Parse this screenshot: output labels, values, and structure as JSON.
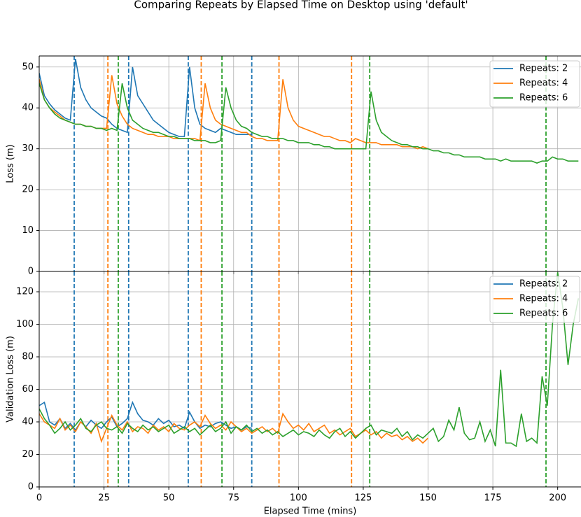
{
  "chart_data": [
    {
      "type": "line",
      "title": "Comparing Repeats by Elapsed Time on Desktop using 'default'",
      "ylabel": "Loss (m)",
      "xlim": [
        0,
        209
      ],
      "ylim": [
        0,
        52.7
      ],
      "xticks": [
        0,
        25,
        50,
        75,
        100,
        125,
        150,
        175,
        200
      ],
      "yticks": [
        0,
        10,
        20,
        30,
        40,
        50
      ],
      "grid": true,
      "legend": "upper right",
      "series": [
        {
          "name": "Repeats: 2",
          "color": "#1f77b4",
          "x": [
            0,
            2,
            4,
            6,
            8,
            10,
            12,
            14,
            16,
            18,
            20,
            22,
            24,
            26,
            28,
            30,
            32,
            34,
            36,
            38,
            40,
            42,
            44,
            46,
            48,
            50,
            52,
            54,
            56,
            58,
            60,
            62,
            64,
            66,
            68,
            70,
            72,
            74,
            76,
            78,
            80,
            82
          ],
          "values": [
            48.5,
            43,
            41,
            39.5,
            38.5,
            37.5,
            37,
            52,
            45,
            42,
            40,
            39,
            38,
            37.5,
            36,
            35,
            34.5,
            34,
            50,
            43,
            41,
            39,
            37,
            36,
            35,
            34,
            33.5,
            33,
            33,
            50,
            40,
            36,
            35,
            34.5,
            34,
            35,
            34.5,
            34,
            33.5,
            33.5,
            33.5,
            33.5
          ]
        },
        {
          "name": "Repeats: 4",
          "color": "#ff7f0e",
          "x": [
            0,
            2,
            4,
            6,
            8,
            10,
            12,
            14,
            16,
            18,
            20,
            22,
            24,
            26,
            28,
            30,
            32,
            34,
            36,
            38,
            40,
            42,
            44,
            46,
            48,
            50,
            52,
            54,
            56,
            58,
            60,
            62,
            64,
            66,
            68,
            70,
            72,
            74,
            76,
            78,
            80,
            82,
            84,
            86,
            88,
            90,
            92,
            94,
            96,
            98,
            100,
            102,
            104,
            106,
            108,
            110,
            112,
            114,
            116,
            118,
            120,
            122,
            124,
            126,
            128,
            130,
            132,
            134,
            136,
            138,
            140,
            142,
            144,
            146,
            148,
            150
          ],
          "values": [
            47,
            42,
            40,
            39,
            38,
            37,
            36.5,
            36,
            36,
            35.5,
            35.5,
            35,
            35,
            35,
            48,
            41,
            38,
            36,
            35,
            34.5,
            34,
            33.5,
            33.5,
            33,
            33,
            33,
            32.5,
            32.5,
            32.5,
            32.5,
            32.5,
            32,
            46,
            40,
            37,
            36,
            35.5,
            35,
            34.5,
            34,
            34,
            33,
            32.5,
            32.5,
            32,
            32,
            32,
            47,
            40,
            37,
            35.5,
            35,
            34.5,
            34,
            33.5,
            33,
            33,
            32.5,
            32,
            32,
            31.5,
            32.5,
            32,
            31.5,
            31.5,
            31.5,
            31,
            31,
            31,
            31,
            30.5,
            30.5,
            30.5,
            30,
            30.5,
            30
          ]
        },
        {
          "name": "Repeats: 6",
          "color": "#2ca02c",
          "x": [
            0,
            2,
            4,
            6,
            8,
            10,
            12,
            14,
            16,
            18,
            20,
            22,
            24,
            26,
            28,
            30,
            32,
            34,
            36,
            38,
            40,
            42,
            44,
            46,
            48,
            50,
            52,
            54,
            56,
            58,
            60,
            62,
            64,
            66,
            68,
            70,
            72,
            74,
            76,
            78,
            80,
            82,
            84,
            86,
            88,
            90,
            92,
            94,
            96,
            98,
            100,
            102,
            104,
            106,
            108,
            110,
            112,
            114,
            116,
            118,
            120,
            122,
            124,
            126,
            128,
            130,
            132,
            134,
            136,
            138,
            140,
            142,
            144,
            146,
            148,
            150,
            152,
            154,
            156,
            158,
            160,
            162,
            164,
            166,
            168,
            170,
            172,
            174,
            176,
            178,
            180,
            182,
            184,
            186,
            188,
            190,
            192,
            194,
            196,
            198,
            200,
            202,
            204,
            206,
            208
          ],
          "values": [
            46,
            42,
            40,
            38.5,
            37.5,
            37,
            36.5,
            36,
            36,
            35.5,
            35.5,
            35,
            35,
            34.5,
            35,
            34.5,
            46,
            40,
            37,
            36,
            35,
            34.5,
            34,
            34,
            33.5,
            33,
            33,
            32.5,
            32.5,
            32.5,
            32,
            32,
            32,
            31.5,
            31.5,
            32,
            45,
            40,
            37,
            35.5,
            35,
            34,
            33.5,
            33,
            33,
            32.5,
            32.5,
            32.5,
            32,
            32,
            31.5,
            31.5,
            31.5,
            31,
            31,
            30.5,
            30.5,
            30,
            30,
            30,
            30,
            30,
            30,
            30,
            44,
            37,
            34,
            33,
            32,
            31.5,
            31,
            31,
            30.5,
            30.5,
            30,
            30,
            29.5,
            29.5,
            29,
            29,
            28.5,
            28.5,
            28,
            28,
            28,
            28,
            27.5,
            27.5,
            27.5,
            27,
            27.5,
            27,
            27,
            27,
            27,
            27,
            26.5,
            27,
            27,
            28,
            27.5,
            27.5,
            27,
            27,
            27
          ]
        }
      ],
      "vlines": [
        {
          "x": 13.5,
          "color": "#1f77b4"
        },
        {
          "x": 34.5,
          "color": "#1f77b4"
        },
        {
          "x": 57.5,
          "color": "#1f77b4"
        },
        {
          "x": 82,
          "color": "#1f77b4"
        },
        {
          "x": 26.5,
          "color": "#ff7f0e"
        },
        {
          "x": 62.5,
          "color": "#ff7f0e"
        },
        {
          "x": 92.5,
          "color": "#ff7f0e"
        },
        {
          "x": 120.5,
          "color": "#ff7f0e"
        },
        {
          "x": 30.5,
          "color": "#2ca02c"
        },
        {
          "x": 70.5,
          "color": "#2ca02c"
        },
        {
          "x": 127.5,
          "color": "#2ca02c"
        },
        {
          "x": 195.5,
          "color": "#2ca02c"
        }
      ]
    },
    {
      "type": "line",
      "ylabel": "Validation Loss (m)",
      "xlabel": "Elapsed Time (mins)",
      "xlim": [
        0,
        209
      ],
      "ylim": [
        0,
        132.5
      ],
      "xticks": [
        0,
        25,
        50,
        75,
        100,
        125,
        150,
        175,
        200
      ],
      "yticks": [
        0,
        20,
        40,
        60,
        80,
        100,
        120
      ],
      "grid": true,
      "legend": "upper right",
      "series": [
        {
          "name": "Repeats: 2",
          "color": "#1f77b4",
          "x": [
            0,
            2,
            4,
            6,
            8,
            10,
            12,
            14,
            16,
            18,
            20,
            22,
            24,
            26,
            28,
            30,
            32,
            34,
            36,
            38,
            40,
            42,
            44,
            46,
            48,
            50,
            52,
            54,
            56,
            58,
            60,
            62,
            64,
            66,
            68,
            70,
            72,
            74,
            76,
            78,
            80,
            82
          ],
          "values": [
            50,
            52,
            40,
            38,
            42,
            36,
            39,
            35,
            40,
            37,
            41,
            38,
            36,
            40,
            43,
            37,
            39,
            42,
            52,
            45,
            41,
            40,
            38,
            42,
            39,
            41,
            37,
            38,
            36,
            46,
            40,
            36,
            38,
            37,
            39,
            40,
            38,
            36,
            37,
            35,
            37,
            36
          ]
        },
        {
          "name": "Repeats: 4",
          "color": "#ff7f0e",
          "x": [
            0,
            2,
            4,
            6,
            8,
            10,
            12,
            14,
            16,
            18,
            20,
            22,
            24,
            26,
            28,
            30,
            32,
            34,
            36,
            38,
            40,
            42,
            44,
            46,
            48,
            50,
            52,
            54,
            56,
            58,
            60,
            62,
            64,
            66,
            68,
            70,
            72,
            74,
            76,
            78,
            80,
            82,
            84,
            86,
            88,
            90,
            92,
            94,
            96,
            98,
            100,
            102,
            104,
            106,
            108,
            110,
            112,
            114,
            116,
            118,
            120,
            122,
            124,
            126,
            128,
            130,
            132,
            134,
            136,
            138,
            140,
            142,
            144,
            146,
            148,
            150
          ],
          "values": [
            45,
            40,
            38,
            36,
            42,
            35,
            38,
            34,
            40,
            37,
            33,
            39,
            28,
            36,
            44,
            38,
            35,
            40,
            34,
            37,
            36,
            33,
            38,
            35,
            37,
            34,
            39,
            36,
            35,
            38,
            40,
            37,
            44,
            39,
            36,
            38,
            35,
            40,
            37,
            34,
            36,
            33,
            35,
            37,
            34,
            36,
            33,
            45,
            40,
            36,
            38,
            35,
            39,
            34,
            36,
            38,
            33,
            35,
            32,
            34,
            36,
            31,
            33,
            35,
            32,
            34,
            30,
            33,
            31,
            32,
            29,
            31,
            28,
            30,
            27,
            30
          ]
        },
        {
          "name": "Repeats: 6",
          "color": "#2ca02c",
          "x": [
            0,
            2,
            4,
            6,
            8,
            10,
            12,
            14,
            16,
            18,
            20,
            22,
            24,
            26,
            28,
            30,
            32,
            34,
            36,
            38,
            40,
            42,
            44,
            46,
            48,
            50,
            52,
            54,
            56,
            58,
            60,
            62,
            64,
            66,
            68,
            70,
            72,
            74,
            76,
            78,
            80,
            82,
            84,
            86,
            88,
            90,
            92,
            94,
            96,
            98,
            100,
            102,
            104,
            106,
            108,
            110,
            112,
            114,
            116,
            118,
            120,
            122,
            124,
            126,
            128,
            130,
            132,
            134,
            136,
            138,
            140,
            142,
            144,
            146,
            148,
            150,
            152,
            154,
            156,
            158,
            160,
            162,
            164,
            166,
            168,
            170,
            172,
            174,
            176,
            178,
            180,
            182,
            184,
            186,
            188,
            190,
            192,
            194,
            196,
            198,
            200,
            202,
            204,
            206,
            208
          ],
          "values": [
            48,
            42,
            38,
            33,
            36,
            40,
            35,
            38,
            42,
            36,
            34,
            38,
            40,
            36,
            35,
            37,
            33,
            39,
            36,
            34,
            38,
            35,
            37,
            34,
            36,
            38,
            33,
            35,
            37,
            34,
            36,
            32,
            35,
            38,
            34,
            36,
            40,
            33,
            37,
            35,
            38,
            34,
            36,
            33,
            35,
            32,
            34,
            31,
            33,
            35,
            32,
            34,
            33,
            31,
            35,
            32,
            30,
            34,
            36,
            31,
            34,
            30,
            33,
            36,
            38,
            32,
            35,
            34,
            33,
            36,
            31,
            34,
            29,
            32,
            30,
            33,
            36,
            28,
            31,
            41,
            35,
            49,
            33,
            29,
            30,
            40,
            28,
            35,
            25,
            72,
            27,
            27,
            25,
            45,
            28,
            30,
            27,
            68,
            50,
            100,
            132,
            110,
            75,
            100,
            116
          ]
        }
      ],
      "vlines": [
        {
          "x": 13.5,
          "color": "#1f77b4"
        },
        {
          "x": 34.5,
          "color": "#1f77b4"
        },
        {
          "x": 57.5,
          "color": "#1f77b4"
        },
        {
          "x": 82,
          "color": "#1f77b4"
        },
        {
          "x": 26.5,
          "color": "#ff7f0e"
        },
        {
          "x": 62.5,
          "color": "#ff7f0e"
        },
        {
          "x": 92.5,
          "color": "#ff7f0e"
        },
        {
          "x": 120.5,
          "color": "#ff7f0e"
        },
        {
          "x": 30.5,
          "color": "#2ca02c"
        },
        {
          "x": 70.5,
          "color": "#2ca02c"
        },
        {
          "x": 127.5,
          "color": "#2ca02c"
        },
        {
          "x": 195.5,
          "color": "#2ca02c"
        }
      ]
    }
  ]
}
